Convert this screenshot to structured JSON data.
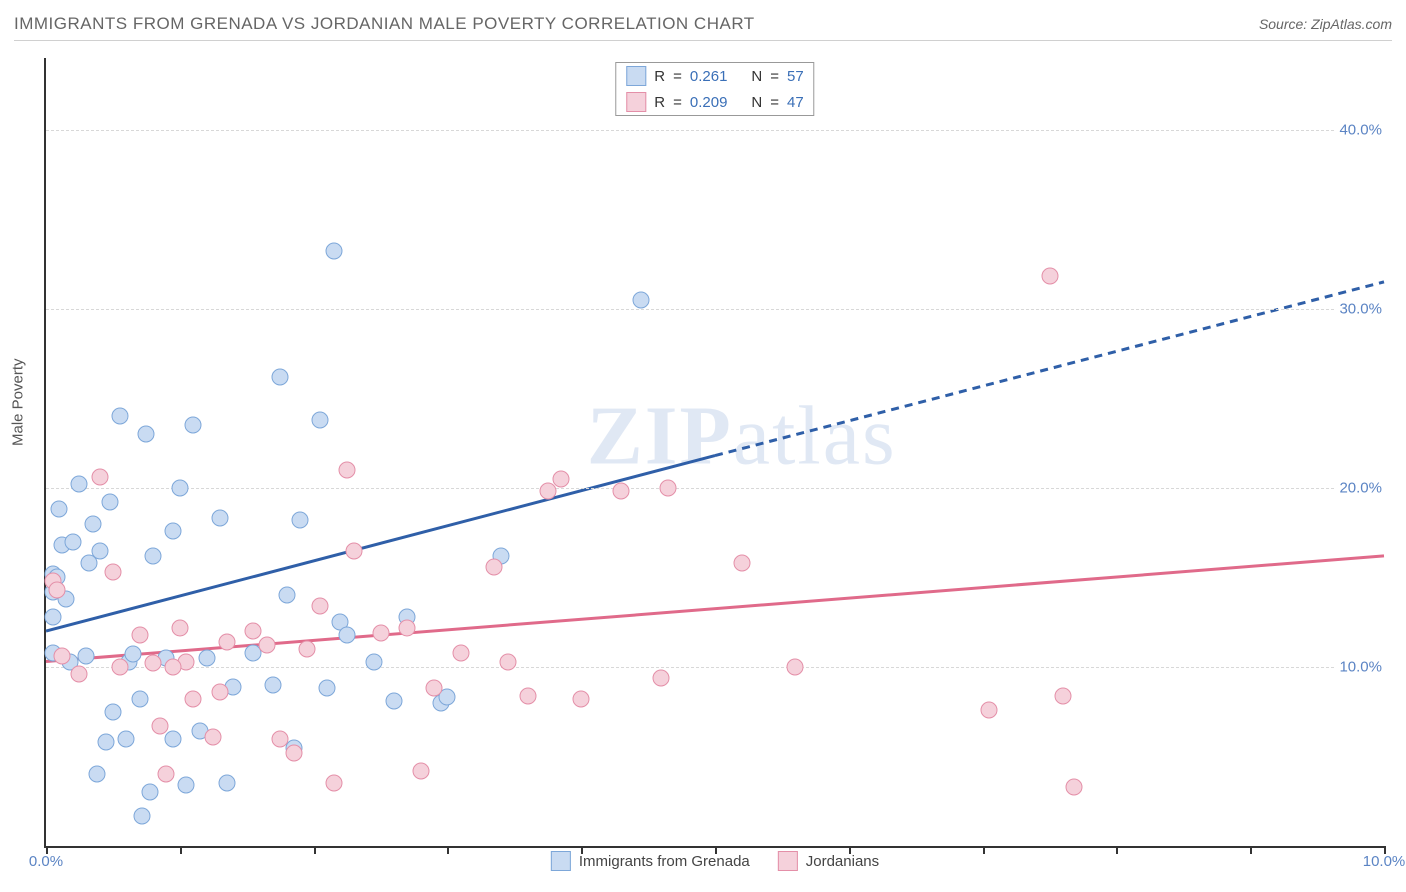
{
  "title": "IMMIGRANTS FROM GRENADA VS JORDANIAN MALE POVERTY CORRELATION CHART",
  "source_label": "Source: ZipAtlas.com",
  "watermark": {
    "bold": "ZIP",
    "light": "atlas"
  },
  "y_axis_title": "Male Poverty",
  "chart": {
    "type": "scatter",
    "xlim": [
      0,
      10
    ],
    "ylim": [
      0,
      44
    ],
    "x_ticks": [
      0,
      1,
      2,
      3,
      4,
      5,
      6,
      7,
      8,
      9,
      10
    ],
    "x_labels": {
      "0": "0.0%",
      "10": "10.0%"
    },
    "y_grid": [
      10,
      20,
      30,
      40
    ],
    "y_labels": {
      "10": "10.0%",
      "20": "20.0%",
      "30": "30.0%",
      "40": "40.0%"
    },
    "background_color": "#ffffff",
    "grid_color": "#d8d8d8",
    "axis_color": "#333333",
    "label_color": "#5b84c4",
    "marker_size": 17,
    "series": [
      {
        "key": "grenada",
        "label": "Immigrants from Grenada",
        "color_fill": "#c9dbf2",
        "color_stroke": "#7da7d9",
        "r_value": "0.261",
        "n_value": "57",
        "trend": {
          "x1": 0,
          "y1": 12.0,
          "x2": 5.0,
          "y2": 21.8,
          "x2d": 10.0,
          "y2d": 31.5,
          "width": 3,
          "dash_after_x": 5.0
        },
        "points": [
          [
            0.05,
            15.2
          ],
          [
            0.08,
            15.0
          ],
          [
            0.1,
            18.8
          ],
          [
            0.12,
            16.8
          ],
          [
            0.15,
            13.8
          ],
          [
            0.2,
            17.0
          ],
          [
            0.25,
            20.2
          ],
          [
            0.3,
            10.6
          ],
          [
            0.35,
            18.0
          ],
          [
            0.38,
            4.0
          ],
          [
            0.4,
            16.5
          ],
          [
            0.45,
            5.8
          ],
          [
            0.5,
            7.5
          ],
          [
            0.55,
            24.0
          ],
          [
            0.6,
            6.0
          ],
          [
            0.62,
            10.3
          ],
          [
            0.65,
            10.7
          ],
          [
            0.7,
            8.2
          ],
          [
            0.72,
            1.7
          ],
          [
            0.75,
            23.0
          ],
          [
            0.78,
            3.0
          ],
          [
            0.8,
            16.2
          ],
          [
            0.9,
            10.5
          ],
          [
            0.95,
            6.0
          ],
          [
            1.0,
            20.0
          ],
          [
            1.05,
            3.4
          ],
          [
            1.1,
            23.5
          ],
          [
            1.15,
            6.4
          ],
          [
            1.2,
            10.5
          ],
          [
            1.3,
            18.3
          ],
          [
            1.35,
            3.5
          ],
          [
            1.4,
            8.9
          ],
          [
            1.55,
            10.8
          ],
          [
            1.7,
            9.0
          ],
          [
            1.75,
            26.2
          ],
          [
            1.8,
            14.0
          ],
          [
            1.85,
            5.5
          ],
          [
            1.9,
            18.2
          ],
          [
            2.05,
            23.8
          ],
          [
            2.1,
            8.8
          ],
          [
            2.15,
            33.2
          ],
          [
            2.2,
            12.5
          ],
          [
            2.25,
            11.8
          ],
          [
            2.45,
            10.3
          ],
          [
            2.6,
            8.1
          ],
          [
            2.7,
            12.8
          ],
          [
            2.95,
            8.0
          ],
          [
            3.0,
            8.3
          ],
          [
            3.4,
            16.2
          ],
          [
            4.45,
            30.5
          ],
          [
            0.05,
            10.8
          ],
          [
            0.18,
            10.3
          ],
          [
            0.32,
            15.8
          ],
          [
            0.48,
            19.2
          ],
          [
            0.95,
            17.6
          ],
          [
            0.05,
            12.8
          ],
          [
            0.05,
            14.2
          ]
        ]
      },
      {
        "key": "jordan",
        "label": "Jordanians",
        "color_fill": "#f5d1db",
        "color_stroke": "#e48fa8",
        "r_value": "0.209",
        "n_value": "47",
        "trend": {
          "x1": 0,
          "y1": 10.3,
          "x2": 10.0,
          "y2": 16.2,
          "width": 3
        },
        "points": [
          [
            0.05,
            14.8
          ],
          [
            0.08,
            14.3
          ],
          [
            0.12,
            10.6
          ],
          [
            0.4,
            20.6
          ],
          [
            0.5,
            15.3
          ],
          [
            0.55,
            10.0
          ],
          [
            0.7,
            11.8
          ],
          [
            0.8,
            10.2
          ],
          [
            0.85,
            6.7
          ],
          [
            0.9,
            4.0
          ],
          [
            1.0,
            12.2
          ],
          [
            1.05,
            10.3
          ],
          [
            1.1,
            8.2
          ],
          [
            1.25,
            6.1
          ],
          [
            1.3,
            8.6
          ],
          [
            1.35,
            11.4
          ],
          [
            1.65,
            11.2
          ],
          [
            1.75,
            6.0
          ],
          [
            1.85,
            5.2
          ],
          [
            2.05,
            13.4
          ],
          [
            2.15,
            3.5
          ],
          [
            2.25,
            21.0
          ],
          [
            2.3,
            16.5
          ],
          [
            2.7,
            12.2
          ],
          [
            2.8,
            4.2
          ],
          [
            2.9,
            8.8
          ],
          [
            3.35,
            15.6
          ],
          [
            3.45,
            10.3
          ],
          [
            3.6,
            8.4
          ],
          [
            3.75,
            19.8
          ],
          [
            3.85,
            20.5
          ],
          [
            4.0,
            8.2
          ],
          [
            4.3,
            19.8
          ],
          [
            4.6,
            9.4
          ],
          [
            4.65,
            20.0
          ],
          [
            5.2,
            15.8
          ],
          [
            5.6,
            10.0
          ],
          [
            7.05,
            7.6
          ],
          [
            7.5,
            31.8
          ],
          [
            7.6,
            8.4
          ],
          [
            7.68,
            3.3
          ],
          [
            2.5,
            11.9
          ],
          [
            1.55,
            12.0
          ],
          [
            0.95,
            10.0
          ],
          [
            0.25,
            9.6
          ],
          [
            1.95,
            11.0
          ],
          [
            3.1,
            10.8
          ]
        ]
      }
    ],
    "legend_top_labels": {
      "r": "R",
      "eq": "=",
      "n": "N"
    }
  }
}
